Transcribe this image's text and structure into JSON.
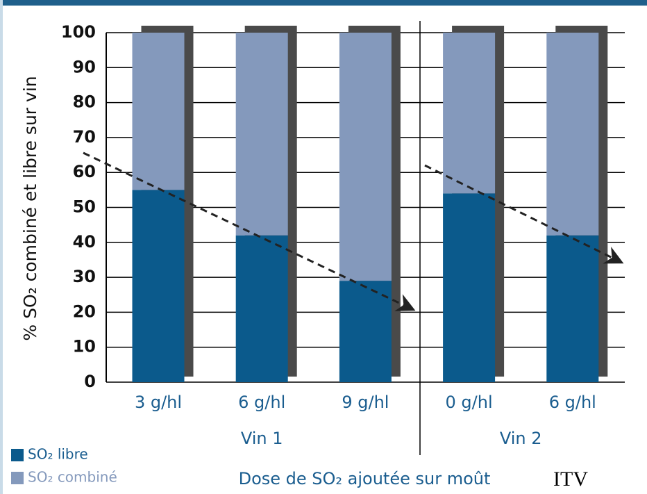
{
  "chart_data": {
    "type": "stacked_bar",
    "y_label": "% SO₂ combiné et libre sur vin",
    "x_label": "Dose de SO₂ ajoutée sur moût",
    "source": "ITV",
    "groups": [
      {
        "name": "Vin 1",
        "categories": [
          "3 g/hl",
          "6 g/hl",
          "9 g/hl"
        ]
      },
      {
        "name": "Vin 2",
        "categories": [
          "0 g/hl",
          "6 g/hl"
        ]
      }
    ],
    "series": [
      {
        "name": "SO₂ libre",
        "color": "#0b5a8c",
        "values": [
          55,
          42,
          29,
          54,
          42
        ]
      },
      {
        "name": "SO₂ combiné",
        "color": "#8499bc",
        "values": [
          45,
          58,
          71,
          46,
          58
        ]
      }
    ],
    "ylim": [
      0,
      100
    ],
    "yticks": [
      0,
      10,
      20,
      30,
      40,
      50,
      60,
      70,
      80,
      90,
      100
    ],
    "grid": true
  }
}
